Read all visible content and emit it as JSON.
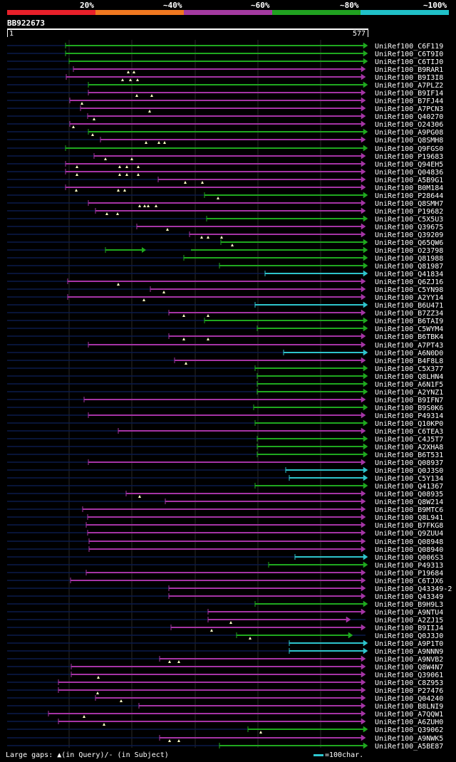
{
  "legend": {
    "percents": [
      "20%",
      "~40%",
      "~60%",
      "~80%",
      "~100%"
    ],
    "colors": [
      "#e8202a",
      "#f07820",
      "#a33aa0",
      "#20a020",
      "#20c0c8"
    ]
  },
  "query": {
    "id": "BB922673",
    "start": "1",
    "end": "577"
  },
  "colors": {
    "green": "#1fa81f",
    "magenta": "#a534a5",
    "cyan": "#2ec4cc",
    "gap": "#0b1a4a",
    "grid": "#2a2a2a"
  },
  "hits": [
    {
      "label": "UniRef100_C6F119",
      "color": "green",
      "s": 92,
      "e": 515,
      "m": []
    },
    {
      "label": "UniRef100_C6T9I0",
      "color": "green",
      "s": 92,
      "e": 515,
      "m": []
    },
    {
      "label": "UniRef100_C6TIJ0",
      "color": "green",
      "s": 97,
      "e": 515,
      "m": []
    },
    {
      "label": "UniRef100_B9RAR1",
      "color": "magenta",
      "s": 103,
      "e": 512,
      "m": [
        180,
        188
      ]
    },
    {
      "label": "UniRef100_B9I3I8",
      "color": "magenta",
      "s": 93,
      "e": 512,
      "m": [
        172,
        183,
        193
      ]
    },
    {
      "label": "UniRef100_A7PLZ2",
      "color": "green",
      "s": 124,
      "e": 515,
      "m": []
    },
    {
      "label": "UniRef100_B9IF14",
      "color": "magenta",
      "s": 124,
      "e": 512,
      "m": [
        192,
        213
      ]
    },
    {
      "label": "UniRef100_B7FJ44",
      "color": "magenta",
      "s": 98,
      "e": 512,
      "m": [
        115
      ]
    },
    {
      "label": "UniRef100_A7PCN3",
      "color": "magenta",
      "s": 113,
      "e": 512,
      "m": [
        210
      ]
    },
    {
      "label": "UniRef100_Q40270",
      "color": "magenta",
      "s": 123,
      "e": 512,
      "m": [
        132
      ]
    },
    {
      "label": "UniRef100_O24306",
      "color": "magenta",
      "s": 98,
      "e": 512,
      "m": [
        103
      ]
    },
    {
      "label": "UniRef100_A9PG08",
      "color": "green",
      "s": 124,
      "e": 515,
      "m": [
        130
      ]
    },
    {
      "label": "UniRef100_Q8SMH8",
      "color": "magenta",
      "s": 141,
      "e": 512,
      "m": [
        205,
        223,
        231
      ]
    },
    {
      "label": "UniRef100_Q9FGS0",
      "color": "green",
      "s": 92,
      "e": 515,
      "m": []
    },
    {
      "label": "UniRef100_P19683",
      "color": "magenta",
      "s": 132,
      "e": 512,
      "m": [
        148,
        185
      ]
    },
    {
      "label": "UniRef100_Q94EH5",
      "color": "magenta",
      "s": 92,
      "e": 512,
      "m": [
        108,
        168,
        178,
        194
      ]
    },
    {
      "label": "UniRef100_Q04836",
      "color": "magenta",
      "s": 92,
      "e": 512,
      "m": [
        108,
        168,
        178,
        194
      ]
    },
    {
      "label": "UniRef100_A5B9G1",
      "color": "magenta",
      "s": 222,
      "e": 512,
      "m": [
        260,
        284
      ]
    },
    {
      "label": "UniRef100_B0M184",
      "color": "magenta",
      "s": 92,
      "e": 512,
      "m": [
        107,
        166,
        175
      ]
    },
    {
      "label": "UniRef100_P28644",
      "color": "green",
      "s": 287,
      "e": 515,
      "m": [
        306
      ]
    },
    {
      "label": "UniRef100_Q8SMH7",
      "color": "magenta",
      "s": 124,
      "e": 512,
      "m": [
        196,
        203,
        208,
        219
      ]
    },
    {
      "label": "UniRef100_P19682",
      "color": "magenta",
      "s": 134,
      "e": 512,
      "m": [
        150,
        165
      ]
    },
    {
      "label": "UniRef100_C5X5U3",
      "color": "green",
      "s": 290,
      "e": 515,
      "m": []
    },
    {
      "label": "UniRef100_Q39675",
      "color": "magenta",
      "s": 192,
      "e": 512,
      "m": [
        235
      ]
    },
    {
      "label": "UniRef100_Q39209",
      "color": "magenta",
      "s": 266,
      "e": 512,
      "m": [
        283,
        292,
        311
      ]
    },
    {
      "label": "UniRef100_Q65QW6",
      "color": "green",
      "s": 310,
      "e": 515,
      "m": [
        326
      ]
    },
    {
      "label": "UniRef100_O23798",
      "color": "green",
      "s": 148,
      "e": 515,
      "m": [],
      "gapFrom": 200,
      "gapTo": 268
    },
    {
      "label": "UniRef100_Q81988",
      "color": "green",
      "s": 258,
      "e": 515,
      "m": []
    },
    {
      "label": "UniRef100_Q81987",
      "color": "green",
      "s": 308,
      "e": 515,
      "m": []
    },
    {
      "label": "UniRef100_Q41834",
      "color": "cyan",
      "s": 372,
      "e": 515,
      "m": []
    },
    {
      "label": "UniRef100_Q6ZJ16",
      "color": "magenta",
      "s": 95,
      "e": 512,
      "m": [
        166
      ]
    },
    {
      "label": "UniRef100_C5YN98",
      "color": "magenta",
      "s": 211,
      "e": 512,
      "m": [
        230
      ]
    },
    {
      "label": "UniRef100_A2YY14",
      "color": "magenta",
      "s": 95,
      "e": 512,
      "m": [
        202
      ]
    },
    {
      "label": "UniRef100_B6U471",
      "color": "cyan",
      "s": 358,
      "e": 515,
      "m": []
    },
    {
      "label": "UniRef100_B7ZZ34",
      "color": "magenta",
      "s": 237,
      "e": 512,
      "m": [
        258,
        292
      ]
    },
    {
      "label": "UniRef100_B6TAI9",
      "color": "green",
      "s": 287,
      "e": 515,
      "m": []
    },
    {
      "label": "UniRef100_C5WYM4",
      "color": "green",
      "s": 361,
      "e": 515,
      "m": []
    },
    {
      "label": "UniRef100_B6TBK4",
      "color": "magenta",
      "s": 237,
      "e": 512,
      "m": [
        258,
        292
      ]
    },
    {
      "label": "UniRef100_A7PT43",
      "color": "magenta",
      "s": 124,
      "e": 512,
      "m": []
    },
    {
      "label": "UniRef100_A6N0D0",
      "color": "cyan",
      "s": 398,
      "e": 515,
      "m": []
    },
    {
      "label": "UniRef100_B4F8L8",
      "color": "magenta",
      "s": 245,
      "e": 512,
      "m": [
        261
      ]
    },
    {
      "label": "UniRef100_C5X377",
      "color": "green",
      "s": 358,
      "e": 515,
      "m": []
    },
    {
      "label": "UniRef100_Q8LHN4",
      "color": "green",
      "s": 361,
      "e": 515,
      "m": []
    },
    {
      "label": "UniRef100_A6N1F5",
      "color": "green",
      "s": 361,
      "e": 515,
      "m": []
    },
    {
      "label": "UniRef100_A2YNZ1",
      "color": "green",
      "s": 361,
      "e": 515,
      "m": []
    },
    {
      "label": "UniRef100_B9IFN7",
      "color": "magenta",
      "s": 118,
      "e": 512,
      "m": []
    },
    {
      "label": "UniRef100_B9S0K6",
      "color": "green",
      "s": 356,
      "e": 515,
      "m": []
    },
    {
      "label": "UniRef100_P49314",
      "color": "magenta",
      "s": 124,
      "e": 512,
      "m": []
    },
    {
      "label": "UniRef100_Q10KP0",
      "color": "green",
      "s": 358,
      "e": 515,
      "m": []
    },
    {
      "label": "UniRef100_C6TEA3",
      "color": "magenta",
      "s": 166,
      "e": 512,
      "m": []
    },
    {
      "label": "UniRef100_C4J5T7",
      "color": "green",
      "s": 361,
      "e": 515,
      "m": []
    },
    {
      "label": "UniRef100_A2XHA8",
      "color": "green",
      "s": 361,
      "e": 515,
      "m": []
    },
    {
      "label": "UniRef100_B6T531",
      "color": "green",
      "s": 361,
      "e": 515,
      "m": []
    },
    {
      "label": "UniRef100_Q08937",
      "color": "magenta",
      "s": 124,
      "e": 512,
      "m": []
    },
    {
      "label": "UniRef100_Q0J3S0",
      "color": "cyan",
      "s": 401,
      "e": 515,
      "m": []
    },
    {
      "label": "UniRef100_C5Y134",
      "color": "cyan",
      "s": 406,
      "e": 515,
      "m": []
    },
    {
      "label": "UniRef100_Q41367",
      "color": "green",
      "s": 358,
      "e": 515,
      "m": []
    },
    {
      "label": "UniRef100_Q08935",
      "color": "magenta",
      "s": 177,
      "e": 512,
      "m": [
        196
      ]
    },
    {
      "label": "UniRef100_Q8W214",
      "color": "magenta",
      "s": 232,
      "e": 512,
      "m": []
    },
    {
      "label": "UniRef100_B9MTC6",
      "color": "magenta",
      "s": 116,
      "e": 512,
      "m": []
    },
    {
      "label": "UniRef100_Q8L941",
      "color": "magenta",
      "s": 123,
      "e": 512,
      "m": []
    },
    {
      "label": "UniRef100_B7FKG8",
      "color": "magenta",
      "s": 121,
      "e": 512,
      "m": []
    },
    {
      "label": "UniRef100_Q9ZUU4",
      "color": "magenta",
      "s": 123,
      "e": 512,
      "m": []
    },
    {
      "label": "UniRef100_Q08948",
      "color": "magenta",
      "s": 125,
      "e": 512,
      "m": []
    },
    {
      "label": "UniRef100_Q08940",
      "color": "magenta",
      "s": 125,
      "e": 512,
      "m": []
    },
    {
      "label": "UniRef100_Q006S3",
      "color": "cyan",
      "s": 414,
      "e": 515,
      "m": []
    },
    {
      "label": "UniRef100_P49313",
      "color": "green",
      "s": 377,
      "e": 515,
      "m": []
    },
    {
      "label": "UniRef100_P19684",
      "color": "magenta",
      "s": 121,
      "e": 512,
      "m": []
    },
    {
      "label": "UniRef100_C6TJX6",
      "color": "magenta",
      "s": 99,
      "e": 512,
      "m": []
    },
    {
      "label": "UniRef100_Q43349-2",
      "color": "magenta",
      "s": 237,
      "e": 512,
      "m": []
    },
    {
      "label": "UniRef100_Q43349",
      "color": "magenta",
      "s": 237,
      "e": 512,
      "m": []
    },
    {
      "label": "UniRef100_B9H9L3",
      "color": "green",
      "s": 358,
      "e": 515,
      "m": []
    },
    {
      "label": "UniRef100_A9NTU4",
      "color": "magenta",
      "s": 292,
      "e": 512,
      "m": []
    },
    {
      "label": "UniRef100_A2ZJ15",
      "color": "magenta",
      "s": 292,
      "e": 491,
      "m": [
        324
      ]
    },
    {
      "label": "UniRef100_B9IIJ4",
      "color": "magenta",
      "s": 240,
      "e": 512,
      "m": [
        297
      ]
    },
    {
      "label": "UniRef100_Q0J3J0",
      "color": "green",
      "s": 332,
      "e": 494,
      "m": [
        351
      ]
    },
    {
      "label": "UniRef100_A9P1T0",
      "color": "cyan",
      "s": 406,
      "e": 515,
      "m": []
    },
    {
      "label": "UniRef100_A9NNN9",
      "color": "cyan",
      "s": 406,
      "e": 515,
      "m": []
    },
    {
      "label": "UniRef100_A9NVB2",
      "color": "magenta",
      "s": 224,
      "e": 512,
      "m": [
        238,
        251
      ]
    },
    {
      "label": "UniRef100_Q8W4N7",
      "color": "magenta",
      "s": 100,
      "e": 512,
      "m": []
    },
    {
      "label": "UniRef100_Q39061",
      "color": "magenta",
      "s": 100,
      "e": 512,
      "m": [
        138
      ]
    },
    {
      "label": "UniRef100_C8Z953",
      "color": "magenta",
      "s": 82,
      "e": 512,
      "m": []
    },
    {
      "label": "UniRef100_P27476",
      "color": "magenta",
      "s": 82,
      "e": 512,
      "m": [
        137
      ]
    },
    {
      "label": "UniRef100_Q04240",
      "color": "magenta",
      "s": 134,
      "e": 512,
      "m": [
        170
      ]
    },
    {
      "label": "UniRef100_B8LNI9",
      "color": "magenta",
      "s": 195,
      "e": 512,
      "m": []
    },
    {
      "label": "UniRef100_A7QQW1",
      "color": "magenta",
      "s": 68,
      "e": 512,
      "m": [
        118
      ]
    },
    {
      "label": "UniRef100_A6ZUH0",
      "color": "magenta",
      "s": 82,
      "e": 512,
      "m": [
        146
      ]
    },
    {
      "label": "UniRef100_Q39062",
      "color": "green",
      "s": 348,
      "e": 515,
      "m": [
        366
      ]
    },
    {
      "label": "UniRef100_A9NWK5",
      "color": "magenta",
      "s": 224,
      "e": 512,
      "m": [
        238,
        251
      ]
    },
    {
      "label": "UniRef100_A5BE87",
      "color": "green",
      "s": 308,
      "e": 515,
      "m": []
    }
  ],
  "footer": {
    "gaps_text": "Large gaps: ▲(in Query)/- (in Subject)",
    "scale_text": "=100char."
  }
}
